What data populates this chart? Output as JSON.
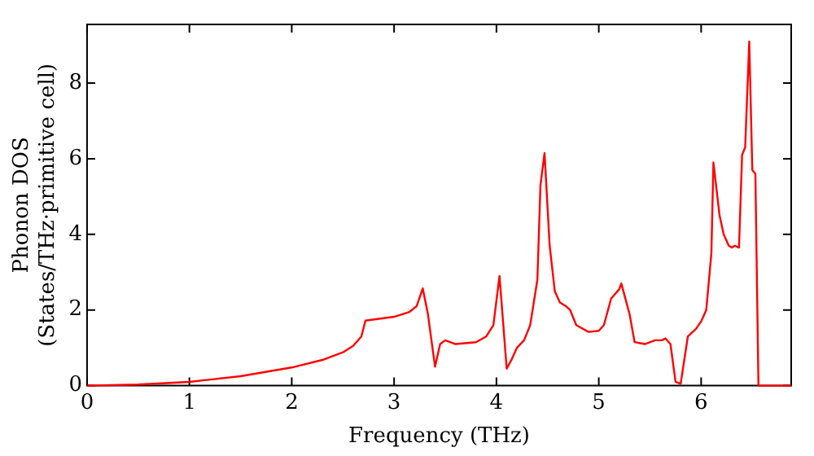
{
  "chart_data": {
    "type": "line",
    "xlabel": "Frequency (THz)",
    "ylabel": "Phonon DOS\n(States/THz·primitive cell)",
    "xlim": [
      0,
      6.88
    ],
    "ylim": [
      0,
      9.55
    ],
    "xticks": [
      0,
      1,
      2,
      3,
      4,
      5,
      6
    ],
    "yticks": [
      0,
      2,
      4,
      6,
      8
    ],
    "grid": false,
    "legend": false,
    "marker": "none",
    "line_style": "solid",
    "series": [
      {
        "color": "#ff0000",
        "x": [
          0,
          0.5,
          1,
          1.5,
          2,
          2.3,
          2.5,
          2.6,
          2.68,
          2.72,
          3.0,
          3.15,
          3.22,
          3.28,
          3.33,
          3.4,
          3.45,
          3.5,
          3.6,
          3.8,
          3.9,
          3.97,
          4.03,
          4.1,
          4.15,
          4.2,
          4.27,
          4.33,
          4.4,
          4.43,
          4.47,
          4.52,
          4.57,
          4.62,
          4.68,
          4.72,
          4.78,
          4.9,
          5.0,
          5.05,
          5.12,
          5.2,
          5.22,
          5.3,
          5.35,
          5.45,
          5.55,
          5.62,
          5.65,
          5.7,
          5.75,
          5.8,
          5.87,
          5.95,
          6.0,
          6.05,
          6.1,
          6.12,
          6.18,
          6.22,
          6.27,
          6.3,
          6.33,
          6.37,
          6.4,
          6.43,
          6.47,
          6.5,
          6.53,
          6.56,
          6.88
        ],
        "values": [
          0,
          0.03,
          0.1,
          0.25,
          0.48,
          0.68,
          0.88,
          1.05,
          1.3,
          1.72,
          1.82,
          1.95,
          2.1,
          2.57,
          1.9,
          0.5,
          1.1,
          1.2,
          1.1,
          1.15,
          1.3,
          1.6,
          2.9,
          0.45,
          0.7,
          1.0,
          1.2,
          1.6,
          2.8,
          5.3,
          6.15,
          3.7,
          2.5,
          2.2,
          2.1,
          2.0,
          1.6,
          1.42,
          1.45,
          1.6,
          2.3,
          2.55,
          2.7,
          1.9,
          1.15,
          1.1,
          1.2,
          1.2,
          1.25,
          1.1,
          0.1,
          0.05,
          1.3,
          1.5,
          1.7,
          2.0,
          3.5,
          5.9,
          4.5,
          4.0,
          3.7,
          3.65,
          3.7,
          3.65,
          6.1,
          6.3,
          9.1,
          5.7,
          5.6,
          0,
          0
        ]
      }
    ]
  }
}
